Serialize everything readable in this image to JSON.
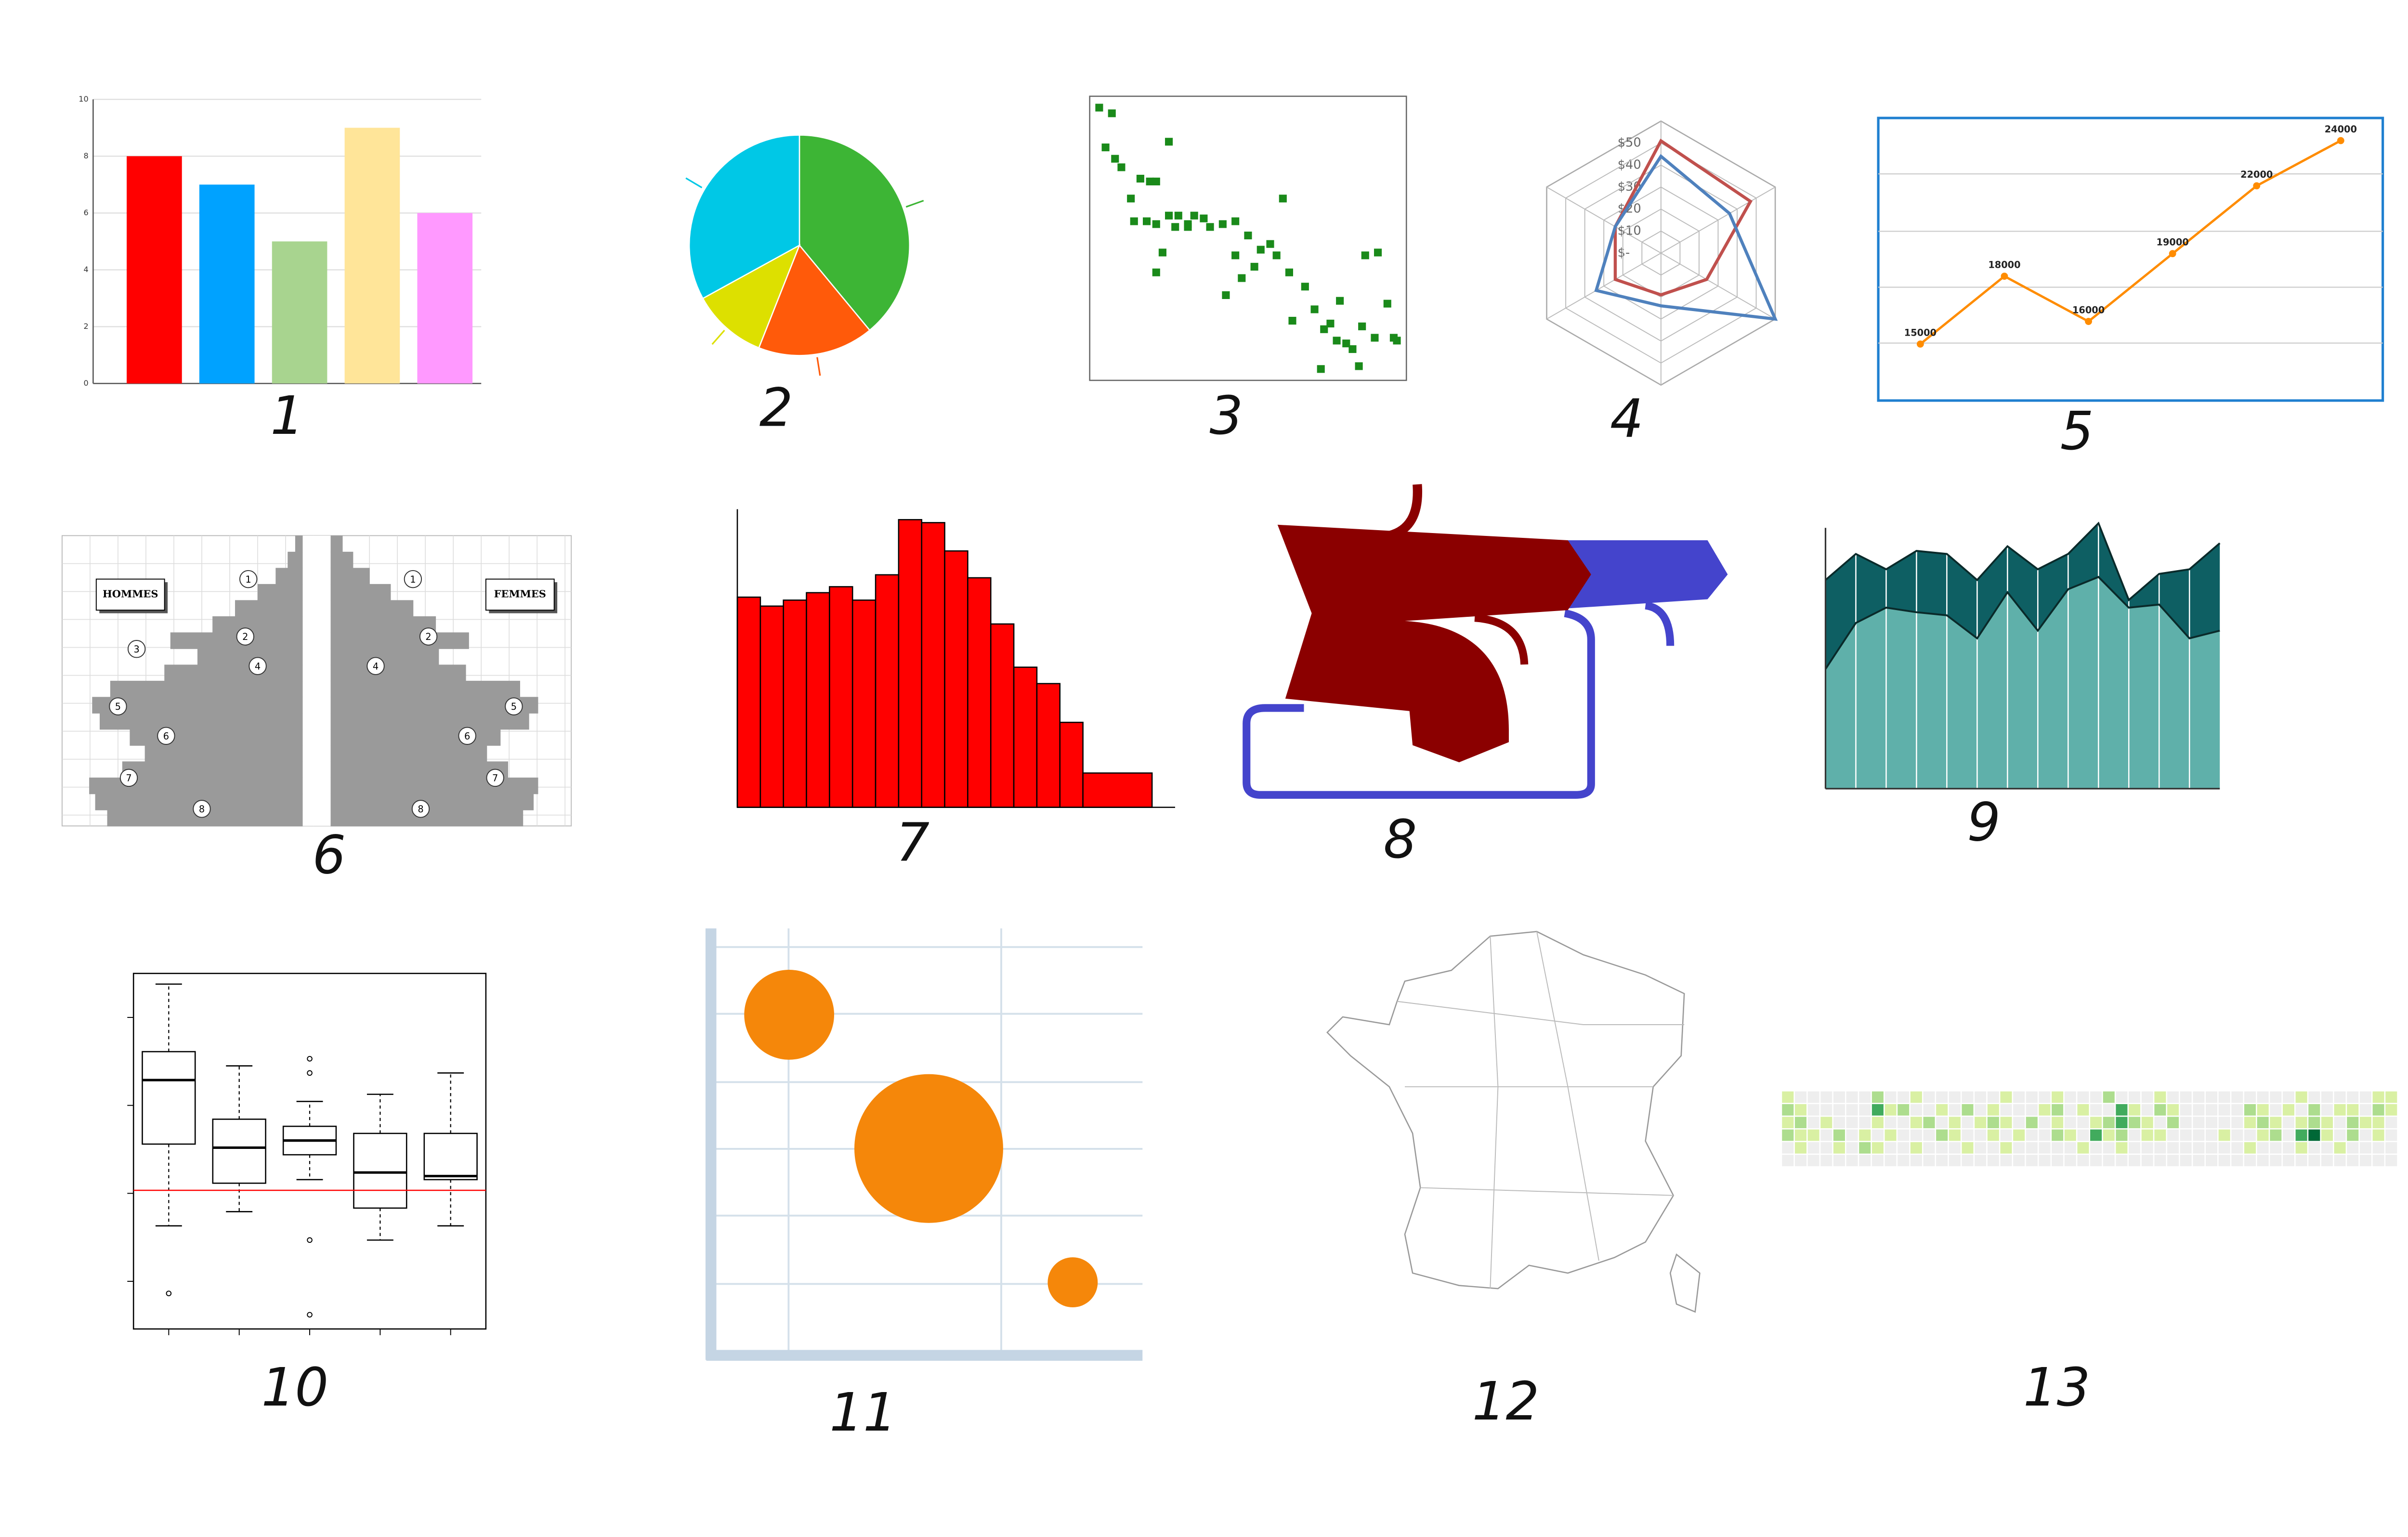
{
  "chart_data": [
    {
      "type": "bar",
      "caption": "1",
      "categories": [
        null,
        null,
        null,
        null,
        null
      ],
      "values": [
        8,
        7,
        5,
        9,
        6
      ],
      "colors": [
        "#ff0000",
        "#00a2ff",
        "#a8d48f",
        "#ffe599",
        "#ff99ff"
      ],
      "ylim": [
        0,
        10
      ],
      "yticks": [
        0,
        2,
        4,
        6,
        8,
        10
      ],
      "grid": true
    },
    {
      "type": "pie",
      "caption": "2",
      "values": [
        39,
        17,
        11,
        33
      ],
      "colors": [
        "#3db535",
        "#ff5a0a",
        "#dde000",
        "#00c8e6"
      ]
    },
    {
      "type": "scatter",
      "caption": "3",
      "color": "#1a8a1a",
      "xlim": [
        0,
        10
      ],
      "ylim": [
        0,
        10
      ],
      "x": [
        0.3,
        0.7,
        0.5,
        0.8,
        1.0,
        1.6,
        1.9,
        1.3,
        2.1,
        2.5,
        1.4,
        1.8,
        2.1,
        2.5,
        2.8,
        3.1,
        3.3,
        3.6,
        2.7,
        3.1,
        3.8,
        4.2,
        4.6,
        6.1,
        5.0,
        5.4,
        5.7,
        5.9,
        5.2,
        4.6,
        2.3,
        2.1,
        4.3,
        4.8,
        6.3,
        6.8,
        6.4,
        7.1,
        7.4,
        7.6,
        7.9,
        7.8,
        8.1,
        8.7,
        9.1,
        8.6,
        8.3,
        8.5,
        7.3,
        9.0,
        9.4,
        9.6,
        9.7
      ],
      "y": [
        9.6,
        9.4,
        8.2,
        7.8,
        7.5,
        7.1,
        7.0,
        6.4,
        7.0,
        8.4,
        5.6,
        5.6,
        5.5,
        5.8,
        5.8,
        5.5,
        5.8,
        5.7,
        5.4,
        5.4,
        5.4,
        5.5,
        5.6,
        6.4,
        5.1,
        4.6,
        4.8,
        4.4,
        4.0,
        4.4,
        4.5,
        3.8,
        3.0,
        3.6,
        3.8,
        3.3,
        2.1,
        2.5,
        1.8,
        2.0,
        2.8,
        1.4,
        1.3,
        4.4,
        4.5,
        1.9,
        1.1,
        0.5,
        0.4,
        1.5,
        2.7,
        1.5,
        1.4
      ]
    },
    {
      "type": "radar",
      "caption": "4",
      "categories": [
        null,
        null,
        null,
        null,
        null,
        null
      ],
      "rlim": [
        0,
        60
      ],
      "rticks": [
        {
          "value": 0,
          "label": "$-"
        },
        {
          "value": 10,
          "label": "$10"
        },
        {
          "value": 20,
          "label": "$20"
        },
        {
          "value": 30,
          "label": "$30"
        },
        {
          "value": 40,
          "label": "$40"
        },
        {
          "value": 50,
          "label": "$50"
        }
      ],
      "series": [
        {
          "color": "#c0504d",
          "values": [
            51,
            47,
            24,
            19,
            24,
            24
          ]
        },
        {
          "color": "#4f81bd",
          "values": [
            44,
            36,
            60,
            24,
            34,
            24
          ]
        }
      ]
    },
    {
      "type": "line",
      "caption": "5",
      "categories": [
        null,
        null,
        null,
        null,
        null,
        null
      ],
      "values": [
        15000,
        18000,
        16000,
        19000,
        22000,
        24000
      ],
      "color": "#ff8c00",
      "ylim": [
        12500,
        25000
      ]
    },
    {
      "type": "pyramid",
      "caption": "6",
      "xlim": [
        0,
        160
      ],
      "annotations": [
        "1",
        "2",
        "3",
        "4",
        "5",
        "6",
        "7",
        "8"
      ],
      "series": [
        {
          "name": "HOMMES",
          "color": "#9a9a9a",
          "values": [
            130,
            138,
            142,
            120,
            105,
            115,
            135,
            140,
            128,
            92,
            70,
            88,
            60,
            45,
            30,
            18,
            10,
            5
          ]
        },
        {
          "name": "FEMMES",
          "color": "#9a9a9a",
          "values": [
            128,
            135,
            138,
            118,
            104,
            113,
            132,
            138,
            126,
            90,
            72,
            92,
            70,
            55,
            40,
            26,
            15,
            8
          ]
        }
      ]
    },
    {
      "type": "histogram",
      "caption": "7",
      "bins": [
        0,
        1,
        2,
        3,
        4,
        5,
        6,
        7,
        8,
        9,
        10,
        11,
        12,
        13,
        14,
        15,
        18
      ],
      "counts": [
        141,
        135,
        139,
        144,
        148,
        139,
        156,
        193,
        191,
        172,
        154,
        123,
        94,
        83,
        57,
        23
      ],
      "color": "#ff0000",
      "xlim": [
        0,
        19
      ],
      "ylim": [
        0,
        200
      ]
    },
    {
      "type": "sankey",
      "caption": "8"
    },
    {
      "type": "area",
      "caption": "9",
      "categories": [
        null,
        null,
        null,
        null,
        null,
        null,
        null,
        null,
        null,
        null,
        null,
        null,
        null,
        null
      ],
      "ylim": [
        0,
        170
      ],
      "series": [
        {
          "color": "#5fb0aa",
          "values": [
            78,
            108,
            118,
            115,
            113,
            98,
            128,
            103,
            130,
            138,
            118,
            120,
            98,
            103
          ]
        },
        {
          "color": "#0e5f63",
          "values": [
            58,
            45,
            25,
            40,
            40,
            38,
            30,
            40,
            23,
            35,
            5,
            20,
            45,
            57
          ]
        }
      ]
    },
    {
      "type": "boxplot",
      "caption": "10",
      "ylim": [
        0,
        10
      ],
      "hline": 3.9,
      "hline_color": "#ff0000",
      "boxes": [
        {
          "whislo": 2.9,
          "q1": 5.2,
          "med": 7.0,
          "q3": 7.8,
          "whishi": 9.7,
          "fliers": [
            1.0
          ]
        },
        {
          "whislo": 3.3,
          "q1": 4.1,
          "med": 5.1,
          "q3": 5.9,
          "whishi": 7.4,
          "fliers": []
        },
        {
          "whislo": 4.2,
          "q1": 4.9,
          "med": 5.3,
          "q3": 5.7,
          "whishi": 6.4,
          "fliers": [
            7.6,
            7.2,
            2.5,
            0.4
          ]
        },
        {
          "whislo": 2.5,
          "q1": 3.4,
          "med": 4.4,
          "q3": 5.5,
          "whishi": 6.6,
          "fliers": []
        },
        {
          "whislo": 2.9,
          "q1": 4.2,
          "med": 4.3,
          "q3": 5.5,
          "whishi": 7.2,
          "fliers": []
        }
      ]
    },
    {
      "type": "bubble",
      "caption": "11",
      "color": "#f5870a",
      "xlim": [
        0,
        10
      ],
      "ylim": [
        0,
        10
      ],
      "x": [
        1.9,
        5.1,
        8.4
      ],
      "y": [
        8.0,
        4.9,
        1.8
      ],
      "sizes": [
        84,
        230,
        26
      ]
    },
    {
      "type": "map",
      "caption": "12"
    },
    {
      "type": "heatmap",
      "caption": "13",
      "colors": [
        "#eeeeee",
        "#d9f0a3",
        "#addd8e",
        "#41ab5d",
        "#006837"
      ],
      "values": [
        [
          1,
          0,
          0,
          0,
          0,
          0,
          0,
          2,
          0,
          0,
          1,
          0,
          0,
          0,
          0,
          0,
          0,
          1,
          0,
          0,
          0,
          1,
          0,
          0,
          0,
          2,
          0,
          0,
          0,
          1,
          0,
          0,
          0,
          0,
          0,
          0,
          0,
          0,
          0,
          0,
          1,
          0,
          0,
          0,
          0,
          0,
          1,
          1
        ],
        [
          2,
          1,
          0,
          0,
          0,
          0,
          0,
          3,
          1,
          2,
          0,
          0,
          1,
          0,
          2,
          0,
          1,
          0,
          0,
          0,
          1,
          2,
          0,
          1,
          0,
          0,
          3,
          1,
          0,
          2,
          1,
          0,
          0,
          0,
          0,
          0,
          2,
          1,
          0,
          1,
          0,
          2,
          0,
          1,
          1,
          0,
          2,
          1
        ],
        [
          1,
          2,
          0,
          1,
          0,
          0,
          0,
          1,
          0,
          0,
          1,
          2,
          0,
          1,
          0,
          1,
          2,
          1,
          0,
          2,
          0,
          1,
          0,
          0,
          1,
          2,
          3,
          2,
          1,
          0,
          2,
          0,
          0,
          0,
          0,
          0,
          1,
          2,
          1,
          0,
          1,
          2,
          1,
          0,
          2,
          1,
          1,
          0
        ],
        [
          2,
          1,
          1,
          0,
          2,
          0,
          1,
          0,
          1,
          0,
          0,
          0,
          2,
          1,
          0,
          0,
          1,
          0,
          1,
          0,
          0,
          2,
          1,
          0,
          3,
          1,
          2,
          0,
          1,
          1,
          0,
          0,
          0,
          0,
          1,
          0,
          0,
          1,
          2,
          0,
          3,
          4,
          1,
          0,
          2,
          0,
          1,
          0
        ],
        [
          0,
          1,
          0,
          0,
          1,
          0,
          2,
          1,
          0,
          0,
          1,
          0,
          0,
          0,
          1,
          0,
          0,
          1,
          0,
          0,
          0,
          0,
          0,
          1,
          0,
          0,
          1,
          0,
          0,
          0,
          0,
          0,
          0,
          0,
          0,
          0,
          1,
          0,
          0,
          0,
          1,
          0,
          0,
          1,
          0,
          0,
          0,
          0
        ],
        [
          0,
          0,
          0,
          0,
          0,
          0,
          0,
          0,
          0,
          0,
          0,
          0,
          0,
          0,
          0,
          0,
          0,
          0,
          0,
          0,
          0,
          0,
          0,
          0,
          0,
          0,
          0,
          0,
          0,
          0,
          0,
          0,
          0,
          0,
          0,
          0,
          0,
          0,
          0,
          0,
          0,
          0,
          0,
          0,
          0,
          0,
          0,
          0
        ]
      ]
    }
  ]
}
